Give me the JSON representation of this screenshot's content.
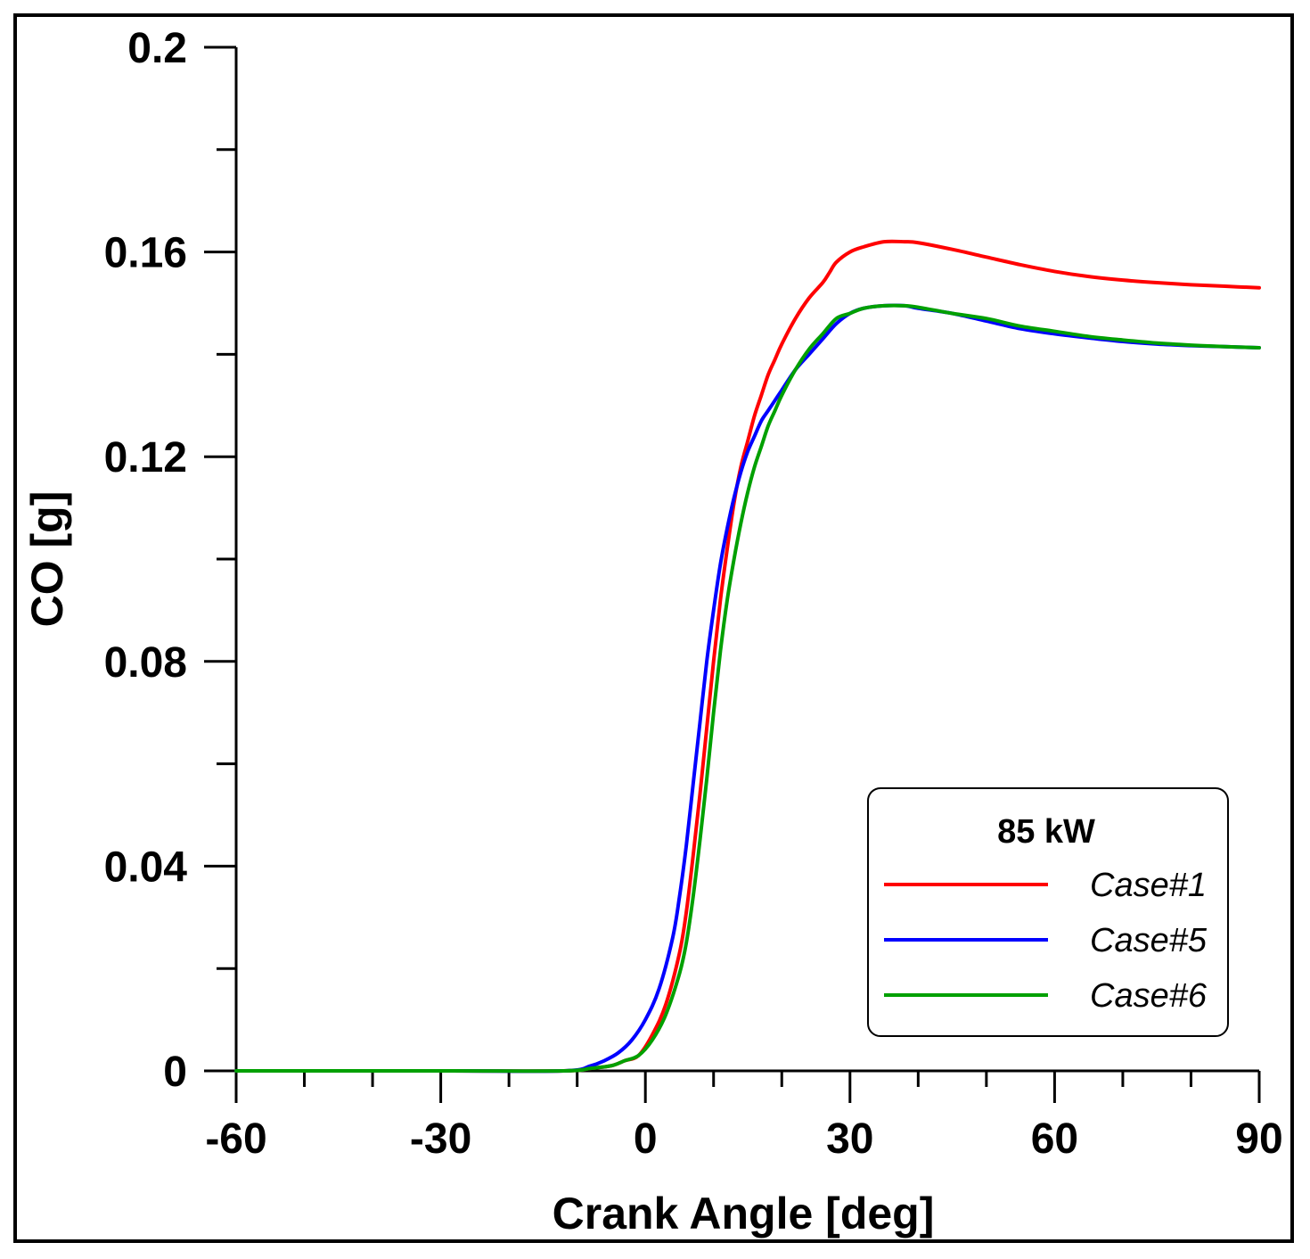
{
  "chart_data": {
    "type": "line",
    "title": "",
    "xlabel": "Crank Angle [deg]",
    "ylabel": "CO [g]",
    "xlim": [
      -60,
      90
    ],
    "ylim": [
      0,
      0.2
    ],
    "x_major_ticks": [
      -60,
      -30,
      0,
      30,
      60,
      90
    ],
    "x_tick_labels": [
      "-60",
      "-30",
      "0",
      "30",
      "60",
      "90"
    ],
    "x_minor_step": 10,
    "y_major_ticks": [
      0,
      0.04,
      0.08,
      0.12,
      0.16,
      0.2
    ],
    "y_tick_labels": [
      "0",
      "0.04",
      "0.08",
      "0.12",
      "0.16",
      "0.2"
    ],
    "y_minor_step": 0.02,
    "grid": false,
    "legend": {
      "title": "85 kW",
      "placement": "bottom-right"
    },
    "series": [
      {
        "name": "Case#1",
        "color": "#ff0000",
        "x": [
          -60,
          -30,
          -12,
          -8,
          -5,
          -3,
          -1,
          1,
          3,
          5,
          6,
          7,
          8,
          9,
          10,
          11,
          12,
          13,
          14,
          15,
          16,
          17,
          18,
          19,
          20,
          22,
          24,
          26,
          27,
          28,
          30,
          32,
          35,
          38,
          40,
          45,
          50,
          55,
          60,
          65,
          70,
          75,
          80,
          85,
          90
        ],
        "values": [
          0,
          0,
          0,
          0.0005,
          0.001,
          0.002,
          0.003,
          0.007,
          0.013,
          0.023,
          0.031,
          0.042,
          0.054,
          0.067,
          0.08,
          0.092,
          0.102,
          0.111,
          0.118,
          0.123,
          0.128,
          0.132,
          0.136,
          0.139,
          0.142,
          0.147,
          0.151,
          0.154,
          0.156,
          0.158,
          0.16,
          0.161,
          0.162,
          0.162,
          0.1618,
          0.1605,
          0.159,
          0.1575,
          0.1562,
          0.1552,
          0.1545,
          0.154,
          0.1536,
          0.1533,
          0.153
        ]
      },
      {
        "name": "Case#5",
        "color": "#0000ff",
        "x": [
          -60,
          -30,
          -12,
          -8,
          -6,
          -4,
          -2,
          0,
          2,
          4,
          5,
          6,
          7,
          8,
          9,
          10,
          11,
          12,
          13,
          14,
          15,
          16,
          17,
          18,
          19,
          20,
          22,
          24,
          26,
          28,
          30,
          32,
          35,
          38,
          40,
          45,
          50,
          55,
          60,
          65,
          70,
          75,
          80,
          85,
          90
        ],
        "values": [
          0,
          0,
          0,
          0.001,
          0.002,
          0.0035,
          0.006,
          0.01,
          0.016,
          0.026,
          0.034,
          0.044,
          0.056,
          0.068,
          0.08,
          0.09,
          0.099,
          0.106,
          0.112,
          0.117,
          0.121,
          0.124,
          0.127,
          0.129,
          0.131,
          0.133,
          0.137,
          0.14,
          0.143,
          0.146,
          0.148,
          0.149,
          0.1495,
          0.1495,
          0.149,
          0.148,
          0.1465,
          0.145,
          0.144,
          0.1432,
          0.1425,
          0.142,
          0.1417,
          0.1415,
          0.1413
        ]
      },
      {
        "name": "Case#6",
        "color": "#00a000",
        "x": [
          -60,
          -30,
          -12,
          -8,
          -5,
          -3,
          -1,
          1,
          3,
          5,
          6,
          7,
          8,
          9,
          10,
          11,
          12,
          13,
          14,
          15,
          16,
          17,
          18,
          19,
          20,
          22,
          24,
          26,
          28,
          30,
          32,
          35,
          38,
          40,
          45,
          50,
          55,
          60,
          65,
          70,
          75,
          80,
          85,
          90
        ],
        "values": [
          0,
          0,
          0,
          0.0005,
          0.001,
          0.002,
          0.003,
          0.006,
          0.011,
          0.019,
          0.025,
          0.034,
          0.045,
          0.057,
          0.07,
          0.082,
          0.092,
          0.1,
          0.107,
          0.113,
          0.118,
          0.122,
          0.126,
          0.129,
          0.132,
          0.137,
          0.141,
          0.144,
          0.147,
          0.148,
          0.149,
          0.1495,
          0.1495,
          0.1492,
          0.148,
          0.147,
          0.1455,
          0.1445,
          0.1435,
          0.1428,
          0.1422,
          0.1418,
          0.1415,
          0.1413
        ]
      }
    ]
  }
}
